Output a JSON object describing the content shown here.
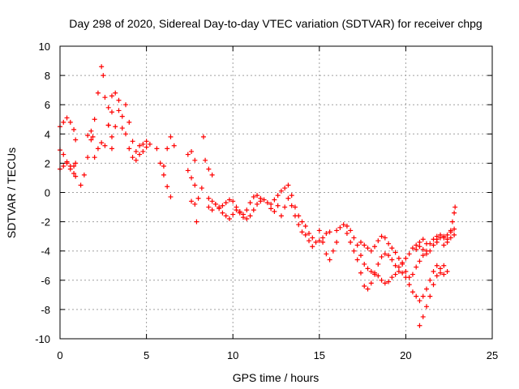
{
  "chart_data": {
    "type": "scatter",
    "title": "Day 298 of 2020, Sidereal Day-to-day VTEC variation (SDTVAR) for receiver chpg",
    "xlabel": "GPS time / hours",
    "ylabel": "SDTVAR / TECUs",
    "xlim": [
      0,
      25
    ],
    "ylim": [
      -10,
      10
    ],
    "xticks": [
      0,
      5,
      10,
      15,
      20,
      25
    ],
    "yticks": [
      -10,
      -8,
      -6,
      -4,
      -2,
      0,
      2,
      4,
      6,
      8,
      10
    ],
    "grid": true,
    "marker": "plus",
    "series": [
      {
        "name": "SDTVAR",
        "color": "#ff0000",
        "tracks": [
          [
            [
              0.0,
              4.5
            ],
            [
              0.2,
              4.8
            ],
            [
              0.4,
              5.1
            ],
            [
              0.6,
              4.8
            ],
            [
              0.8,
              4.3
            ],
            [
              0.9,
              3.6
            ]
          ],
          [
            [
              0.0,
              2.9
            ],
            [
              0.2,
              2.6
            ],
            [
              0.4,
              2.1
            ],
            [
              0.6,
              1.6
            ],
            [
              0.8,
              1.8
            ],
            [
              0.9,
              2.0
            ]
          ],
          [
            [
              0.0,
              1.6
            ],
            [
              0.2,
              1.8
            ],
            [
              0.4,
              2.0
            ],
            [
              0.6,
              1.8
            ],
            [
              0.8,
              1.3
            ],
            [
              0.9,
              1.1
            ]
          ],
          [
            [
              1.2,
              0.5
            ],
            [
              1.4,
              1.2
            ],
            [
              1.6,
              2.4
            ],
            [
              1.8,
              3.6
            ],
            [
              1.9,
              3.8
            ],
            [
              2.0,
              5.0
            ],
            [
              2.2,
              6.8
            ],
            [
              2.4,
              8.6
            ],
            [
              2.5,
              8.0
            ],
            [
              2.6,
              6.5
            ],
            [
              2.8,
              4.6
            ],
            [
              3.0,
              3.0
            ]
          ],
          [
            [
              1.6,
              3.9
            ],
            [
              1.8,
              4.2
            ],
            [
              2.0,
              2.4
            ],
            [
              2.2,
              3.0
            ],
            [
              2.4,
              3.4
            ],
            [
              2.6,
              3.2
            ],
            [
              2.8,
              4.6
            ],
            [
              3.0,
              5.5
            ]
          ],
          [
            [
              2.8,
              5.8
            ],
            [
              3.0,
              6.6
            ],
            [
              3.2,
              6.8
            ],
            [
              3.4,
              6.3
            ],
            [
              3.6,
              5.2
            ],
            [
              3.8,
              4.0
            ],
            [
              4.0,
              3.0
            ],
            [
              4.2,
              2.4
            ],
            [
              4.4,
              2.8
            ],
            [
              4.6,
              3.2
            ],
            [
              4.8,
              3.3
            ],
            [
              5.0,
              3.1
            ]
          ],
          [
            [
              3.0,
              3.8
            ],
            [
              3.2,
              4.5
            ],
            [
              3.4,
              5.6
            ],
            [
              3.6,
              4.4
            ],
            [
              3.8,
              6.0
            ],
            [
              4.0,
              4.8
            ],
            [
              4.2,
              3.5
            ],
            [
              4.4,
              2.2
            ],
            [
              4.6,
              2.6
            ],
            [
              4.8,
              2.8
            ],
            [
              5.0,
              3.5
            ],
            [
              5.2,
              3.3
            ]
          ],
          [
            [
              5.6,
              3.0
            ],
            [
              5.8,
              2.0
            ],
            [
              6.0,
              1.2
            ],
            [
              6.2,
              0.4
            ],
            [
              6.4,
              -0.3
            ]
          ],
          [
            [
              6.0,
              1.8
            ],
            [
              6.2,
              3.0
            ],
            [
              6.4,
              3.8
            ],
            [
              6.6,
              3.2
            ]
          ],
          [
            [
              7.4,
              2.6
            ],
            [
              7.6,
              2.8
            ],
            [
              7.8,
              2.2
            ]
          ],
          [
            [
              7.4,
              1.5
            ],
            [
              7.6,
              1.0
            ],
            [
              7.8,
              0.5
            ],
            [
              8.0,
              -0.4
            ],
            [
              8.2,
              0.3
            ],
            [
              8.3,
              3.8
            ],
            [
              8.4,
              2.2
            ]
          ],
          [
            [
              7.6,
              -0.6
            ],
            [
              7.8,
              -0.8
            ],
            [
              7.9,
              -2.0
            ]
          ],
          [
            [
              8.6,
              1.6
            ],
            [
              8.8,
              1.2
            ]
          ],
          [
            [
              8.6,
              -1.0
            ],
            [
              8.8,
              -1.2
            ],
            [
              9.0,
              -0.8
            ],
            [
              9.2,
              -1.1
            ],
            [
              9.4,
              -0.9
            ],
            [
              9.6,
              -0.7
            ],
            [
              9.8,
              -0.5
            ],
            [
              10.0,
              -0.6
            ],
            [
              10.2,
              -1.0
            ],
            [
              10.4,
              -1.4
            ],
            [
              10.6,
              -1.7
            ],
            [
              10.8,
              -1.8
            ],
            [
              11.0,
              -1.6
            ],
            [
              11.2,
              -1.2
            ],
            [
              11.4,
              -0.8
            ],
            [
              11.6,
              -0.6
            ],
            [
              11.8,
              -0.5
            ],
            [
              12.0,
              -0.7
            ],
            [
              12.2,
              -1.1
            ],
            [
              12.4,
              -1.3
            ]
          ],
          [
            [
              8.6,
              -0.4
            ],
            [
              8.8,
              -0.6
            ],
            [
              9.0,
              -0.8
            ],
            [
              9.2,
              -1.0
            ],
            [
              9.4,
              -1.4
            ],
            [
              9.6,
              -1.6
            ],
            [
              9.8,
              -1.8
            ],
            [
              10.0,
              -1.5
            ],
            [
              10.2,
              -1.2
            ],
            [
              10.4,
              -1.3
            ],
            [
              10.6,
              -1.5
            ],
            [
              10.8,
              -1.2
            ],
            [
              11.0,
              -0.7
            ],
            [
              11.2,
              -0.3
            ],
            [
              11.4,
              -0.2
            ],
            [
              11.6,
              -0.4
            ]
          ],
          [
            [
              12.2,
              -0.8
            ],
            [
              12.4,
              -0.5
            ],
            [
              12.6,
              -0.2
            ],
            [
              12.8,
              0.1
            ],
            [
              13.0,
              0.3
            ],
            [
              13.2,
              0.5
            ],
            [
              13.4,
              -0.2
            ],
            [
              13.6,
              -1.0
            ],
            [
              13.8,
              -1.6
            ],
            [
              14.0,
              -2.0
            ],
            [
              14.2,
              -2.3
            ],
            [
              14.4,
              -2.8
            ],
            [
              14.6,
              -3.1
            ],
            [
              14.8,
              -3.4
            ],
            [
              15.0,
              -3.3
            ],
            [
              15.2,
              -3.1
            ],
            [
              15.4,
              -2.8
            ],
            [
              15.6,
              -2.7
            ]
          ],
          [
            [
              12.6,
              -0.9
            ],
            [
              12.8,
              -1.6
            ],
            [
              13.0,
              -1.0
            ],
            [
              13.2,
              -0.4
            ],
            [
              13.4,
              -0.9
            ],
            [
              13.6,
              -1.6
            ],
            [
              13.8,
              -2.2
            ],
            [
              14.0,
              -2.7
            ],
            [
              14.2,
              -2.9
            ],
            [
              14.4,
              -3.3
            ],
            [
              14.6,
              -3.7
            ]
          ],
          [
            [
              15.0,
              -2.6
            ],
            [
              15.2,
              -3.4
            ],
            [
              15.4,
              -4.2
            ],
            [
              15.6,
              -4.6
            ],
            [
              15.8,
              -4.0
            ],
            [
              16.0,
              -3.4
            ]
          ],
          [
            [
              16.0,
              -2.6
            ],
            [
              16.2,
              -2.4
            ],
            [
              16.4,
              -2.2
            ],
            [
              16.6,
              -2.3
            ],
            [
              16.8,
              -2.6
            ],
            [
              17.0,
              -3.1
            ],
            [
              17.2,
              -3.6
            ],
            [
              17.4,
              -4.3
            ],
            [
              17.6,
              -4.9
            ],
            [
              17.8,
              -5.2
            ],
            [
              18.0,
              -5.4
            ],
            [
              18.2,
              -5.5
            ],
            [
              18.4,
              -5.7
            ],
            [
              18.6,
              -6.0
            ],
            [
              18.8,
              -6.2
            ],
            [
              19.0,
              -6.1
            ],
            [
              19.2,
              -5.8
            ],
            [
              19.4,
              -5.6
            ],
            [
              19.6,
              -5.4
            ],
            [
              19.8,
              -5.5
            ],
            [
              20.0,
              -5.8
            ],
            [
              20.2,
              -6.3
            ],
            [
              20.4,
              -6.8
            ],
            [
              20.6,
              -7.1
            ],
            [
              20.8,
              -7.4
            ],
            [
              21.0,
              -7.1
            ],
            [
              21.2,
              -6.6
            ],
            [
              21.4,
              -6.0
            ],
            [
              21.6,
              -5.4
            ],
            [
              21.8,
              -5.0
            ],
            [
              22.0,
              -5.2
            ],
            [
              22.2,
              -5.6
            ],
            [
              22.4,
              -5.4
            ]
          ],
          [
            [
              16.6,
              -2.8
            ],
            [
              16.8,
              -3.4
            ],
            [
              17.0,
              -4.0
            ],
            [
              17.2,
              -4.6
            ],
            [
              17.4,
              -5.5
            ],
            [
              17.6,
              -6.4
            ],
            [
              17.8,
              -6.6
            ],
            [
              18.0,
              -6.2
            ],
            [
              18.2,
              -5.6
            ],
            [
              18.4,
              -4.9
            ],
            [
              18.6,
              -4.4
            ],
            [
              18.8,
              -4.2
            ],
            [
              19.0,
              -4.3
            ],
            [
              19.2,
              -4.6
            ],
            [
              19.4,
              -5.0
            ],
            [
              19.6,
              -5.1
            ],
            [
              19.8,
              -4.8
            ],
            [
              20.0,
              -4.5
            ],
            [
              20.2,
              -4.2
            ],
            [
              20.4,
              -3.8
            ],
            [
              20.6,
              -3.6
            ],
            [
              20.8,
              -3.7
            ],
            [
              21.0,
              -3.9
            ],
            [
              21.2,
              -4.2
            ],
            [
              21.4,
              -4.0
            ],
            [
              21.6,
              -3.6
            ],
            [
              21.8,
              -3.2
            ]
          ],
          [
            [
              17.4,
              -3.4
            ],
            [
              17.6,
              -3.6
            ],
            [
              17.8,
              -3.8
            ],
            [
              18.0,
              -4.0
            ],
            [
              18.2,
              -3.7
            ],
            [
              18.4,
              -3.3
            ],
            [
              18.6,
              -3.0
            ],
            [
              18.8,
              -3.1
            ],
            [
              19.0,
              -3.5
            ],
            [
              19.2,
              -3.8
            ],
            [
              19.4,
              -4.1
            ],
            [
              19.6,
              -4.5
            ],
            [
              19.8,
              -4.9
            ],
            [
              20.0,
              -5.4
            ],
            [
              20.2,
              -5.8
            ],
            [
              20.4,
              -5.6
            ],
            [
              20.6,
              -5.1
            ],
            [
              20.8,
              -4.7
            ],
            [
              21.0,
              -4.3
            ],
            [
              21.2,
              -4.0
            ],
            [
              21.4,
              -3.5
            ],
            [
              21.6,
              -3.2
            ],
            [
              21.8,
              -3.4
            ],
            [
              22.0,
              -3.1
            ],
            [
              22.2,
              -3.0
            ],
            [
              22.4,
              -2.9
            ],
            [
              22.6,
              -2.7
            ],
            [
              22.8,
              -2.9
            ]
          ],
          [
            [
              20.6,
              -3.9
            ],
            [
              20.8,
              -3.4
            ],
            [
              21.0,
              -3.2
            ],
            [
              21.2,
              -3.5
            ]
          ],
          [
            [
              20.8,
              -9.1
            ],
            [
              21.0,
              -8.5
            ],
            [
              21.2,
              -7.8
            ],
            [
              21.4,
              -7.1
            ],
            [
              21.6,
              -6.3
            ],
            [
              21.8,
              -5.7
            ],
            [
              22.0,
              -5.5
            ],
            [
              22.2,
              -5.0
            ]
          ],
          [
            [
              22.2,
              -3.6
            ],
            [
              22.4,
              -3.2
            ],
            [
              22.6,
              -2.6
            ],
            [
              22.7,
              -2.0
            ],
            [
              22.8,
              -1.4
            ],
            [
              22.85,
              -1.0
            ]
          ],
          [
            [
              21.8,
              -3.0
            ],
            [
              22.0,
              -2.9
            ],
            [
              22.2,
              -3.1
            ],
            [
              22.4,
              -3.4
            ],
            [
              22.6,
              -3.1
            ],
            [
              22.8,
              -2.5
            ]
          ]
        ]
      }
    ]
  }
}
